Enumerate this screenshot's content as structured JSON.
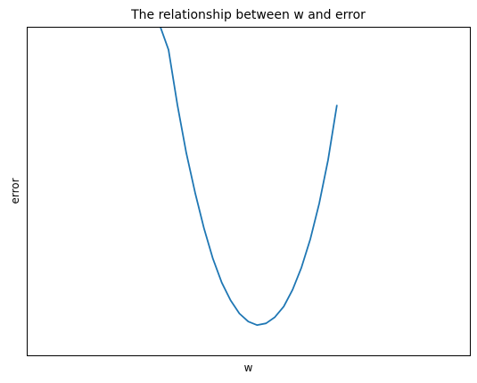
{
  "chart_data": {
    "type": "line",
    "title": "The relationship between w and error",
    "xlabel": "w",
    "ylabel": "error",
    "xlim": [
      0,
      50
    ],
    "ylim": [
      0,
      37
    ],
    "xticks": [],
    "yticks": [],
    "grid": false,
    "legend": "none",
    "series": [
      {
        "color": "#1f77b4",
        "x": [
          15,
          16,
          17,
          18,
          19,
          20,
          21,
          22,
          23,
          24,
          25,
          26,
          27,
          28,
          29,
          30,
          31,
          32,
          33,
          34,
          35
        ],
        "y": [
          37.2,
          34.4,
          28.2,
          22.8,
          18.3,
          14.3,
          10.9,
          8.2,
          6.2,
          4.7,
          3.8,
          3.4,
          3.6,
          4.3,
          5.5,
          7.4,
          9.9,
          13.1,
          17.1,
          22.0,
          28.2
        ]
      }
    ]
  }
}
